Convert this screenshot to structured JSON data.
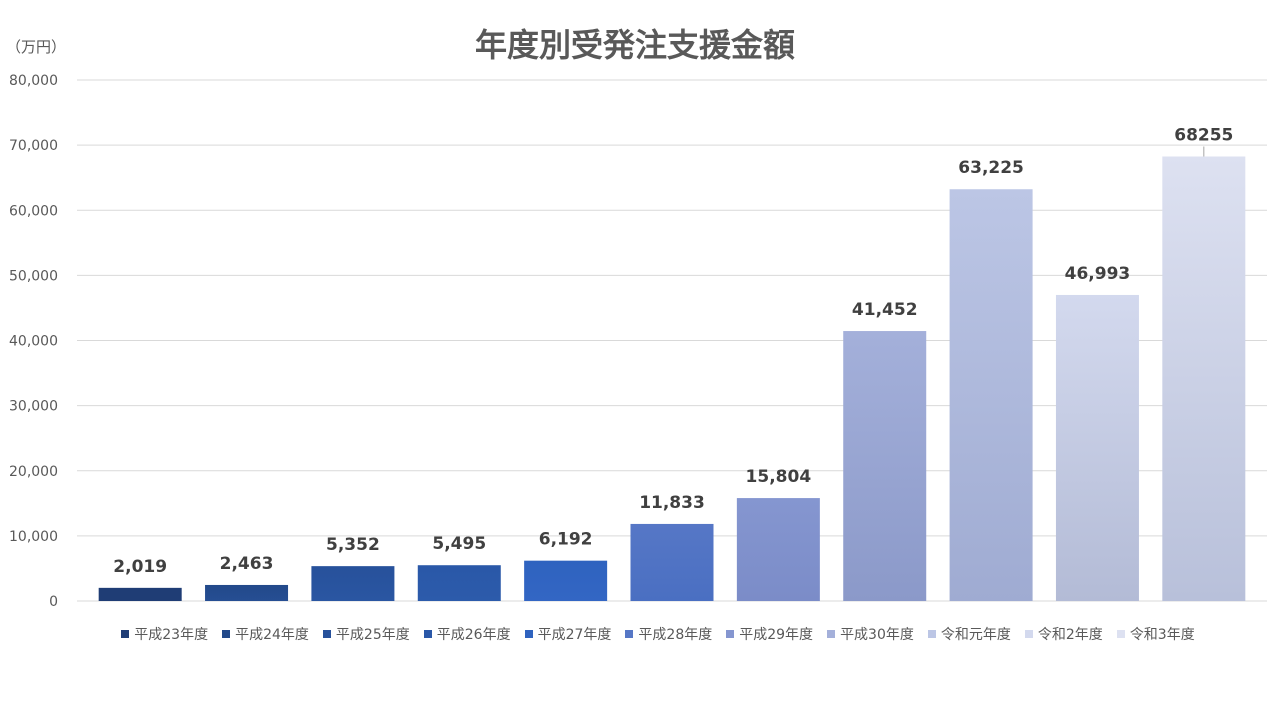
{
  "chart_data": {
    "type": "bar",
    "title": "年度別受発注支援金額",
    "unit_label": "（万円）",
    "categories": [
      "平成23年度",
      "平成24年度",
      "平成25年度",
      "平成26年度",
      "平成27年度",
      "平成28年度",
      "平成29年度",
      "平成30年度",
      "令和元年度",
      "令和2年度",
      "令和3年度"
    ],
    "values": [
      2019,
      2463,
      5352,
      5495,
      6192,
      11833,
      15804,
      41452,
      63225,
      46993,
      68255
    ],
    "data_labels": [
      "2,019",
      "2,463",
      "5,352",
      "5,495",
      "6,192",
      "11,833",
      "15,804",
      "41,452",
      "63,225",
      "46,993",
      "68255"
    ],
    "ylim": [
      0,
      80000
    ],
    "yticks": [
      "0",
      "10,000",
      "20,000",
      "30,000",
      "40,000",
      "50,000",
      "60,000",
      "70,000",
      "80,000"
    ],
    "grid": true,
    "legend_position": "bottom",
    "colors": {
      "bar_top": [
        "#1f3d75",
        "#22498a",
        "#27519b",
        "#2a58a8",
        "#2f63bf",
        "#5677c6",
        "#8596d0",
        "#a4b0da",
        "#bcc6e5",
        "#d3d9ee",
        "#dde1f1"
      ],
      "bar_bottom": [
        "#1f3d75",
        "#264e93",
        "#2a56a2",
        "#2c5bab",
        "#3366c4",
        "#4a6fc2",
        "#7b8cc8",
        "#8b99c9",
        "#9fabd2",
        "#b3bbd6",
        "#b8c0da"
      ],
      "grid": "#d9d9d9",
      "axis_text": "#595959",
      "label_text": "#404040"
    }
  }
}
